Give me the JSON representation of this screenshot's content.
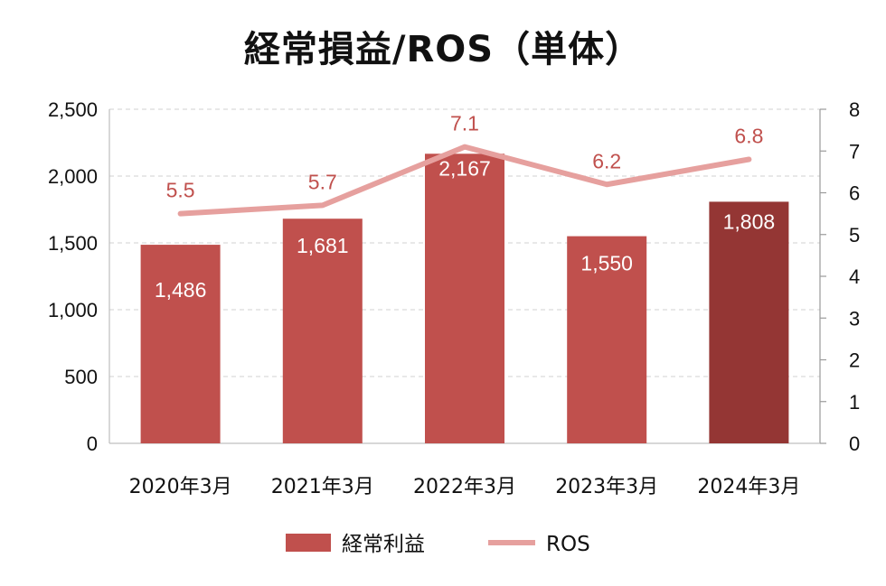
{
  "chart_data": {
    "type": "bar",
    "title": "経常損益/ROS（単体）",
    "categories": [
      "2020年3月",
      "2021年3月",
      "2022年3月",
      "2023年3月",
      "2024年3月"
    ],
    "series": [
      {
        "name": "経常利益",
        "type": "bar",
        "axis": "left",
        "values": [
          1486,
          1681,
          2167,
          1550,
          1808
        ],
        "labels": [
          "1,486",
          "1,681",
          "2,167",
          "1,550",
          "1,808"
        ],
        "color": "#c0504d",
        "highlight_color": "#943634",
        "highlight_index": 4
      },
      {
        "name": "ROS",
        "type": "line",
        "axis": "right",
        "values": [
          5.5,
          5.7,
          7.1,
          6.2,
          6.8
        ],
        "labels": [
          "5.5",
          "5.7",
          "7.1",
          "6.2",
          "6.8"
        ],
        "color": "#e6a09e",
        "label_color": "#c0504d"
      }
    ],
    "y_left": {
      "ylim": [
        0,
        2500
      ],
      "ticks": [
        "0",
        "500",
        "1,000",
        "1,500",
        "2,000",
        "2,500"
      ]
    },
    "y_right": {
      "ylim": [
        0,
        8
      ],
      "ticks": [
        "0",
        "1",
        "2",
        "3",
        "4",
        "5",
        "6",
        "7",
        "8"
      ]
    },
    "grid": true,
    "legend": "bottom"
  }
}
